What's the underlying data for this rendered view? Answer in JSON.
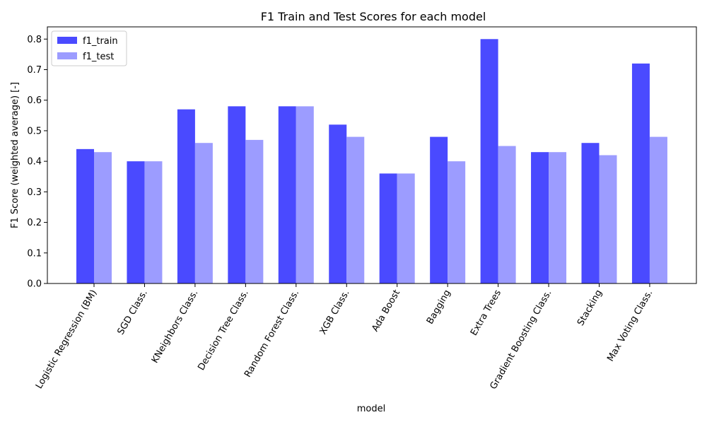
{
  "chart_data": {
    "type": "bar",
    "title": "F1 Train and Test Scores for each model",
    "xlabel": "model",
    "ylabel": "F1 Score (weighted average) [-]",
    "ylim": [
      0,
      0.84
    ],
    "yticks": [
      "0.0",
      "0.1",
      "0.2",
      "0.3",
      "0.4",
      "0.5",
      "0.6",
      "0.7",
      "0.8"
    ],
    "grid": false,
    "legend_position": "top-left",
    "categories": [
      "Logistic Regression (BM)",
      "SGD Class.",
      "KNeighbors Class.",
      "Decision Tree Class.",
      "Random Forest Class.",
      "XGB Class.",
      "Ada Boost",
      "Bagging",
      "Extra Trees",
      "Gradient Boosting Class.",
      "Stacking",
      "Max Voting Class."
    ],
    "series": [
      {
        "name": "f1_train",
        "color": "#4a4aff",
        "values": [
          0.44,
          0.4,
          0.57,
          0.58,
          0.58,
          0.52,
          0.36,
          0.48,
          0.8,
          0.43,
          0.46,
          0.72
        ]
      },
      {
        "name": "f1_test",
        "color": "#9c9cff",
        "values": [
          0.43,
          0.4,
          0.46,
          0.47,
          0.58,
          0.48,
          0.36,
          0.4,
          0.45,
          0.43,
          0.42,
          0.48
        ]
      }
    ]
  }
}
